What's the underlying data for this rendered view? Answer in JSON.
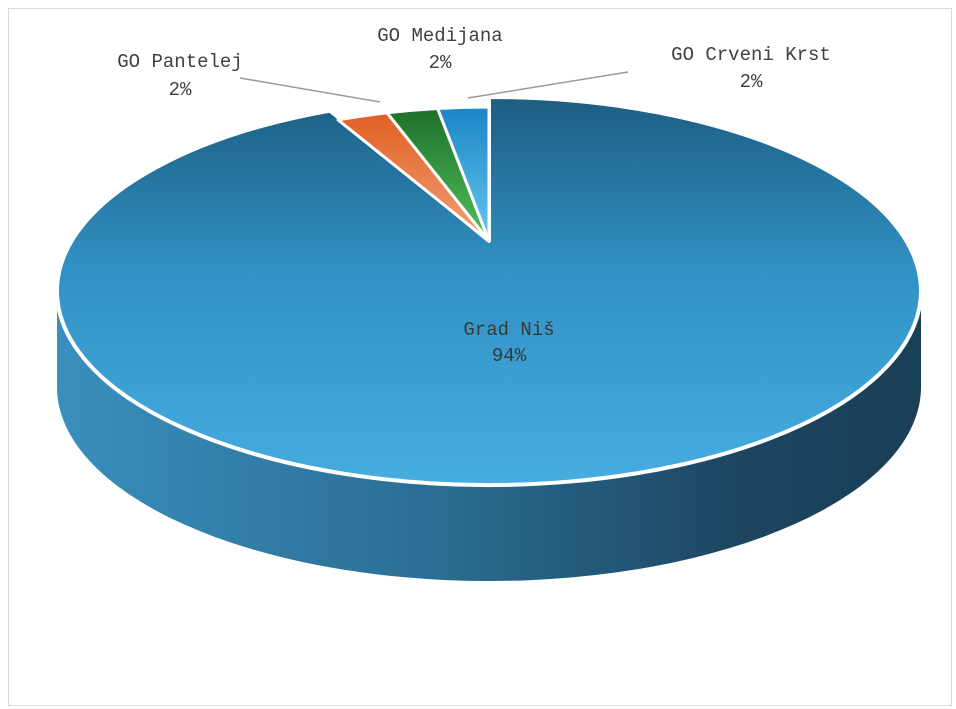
{
  "chart_data": {
    "type": "pie",
    "title": "",
    "categories": [
      "Grad Niš",
      "GO Pantelej",
      "GO Medijana",
      "GO Crveni Krst"
    ],
    "values": [
      94,
      2,
      2,
      2
    ],
    "labels": [
      {
        "name": "Grad Niš",
        "percent": "94%"
      },
      {
        "name": "GO Pantelej",
        "percent": "2%"
      },
      {
        "name": "GO Medijana",
        "percent": "2%"
      },
      {
        "name": "GO Crveni Krst",
        "percent": "2%"
      }
    ],
    "colors": [
      "#2e8bc0",
      "#e6733a",
      "#2f9e44",
      "#2aa6d8"
    ],
    "legend": "none",
    "style": "3d-exploded"
  }
}
